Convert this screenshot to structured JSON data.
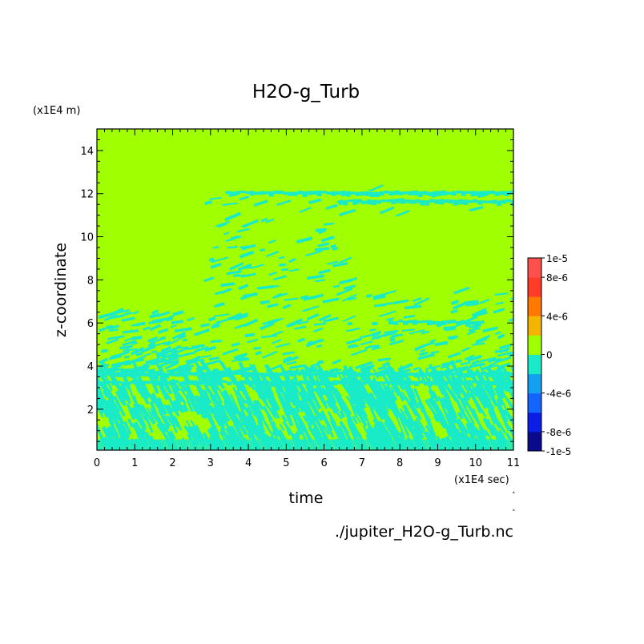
{
  "chart_data": {
    "type": "heatmap",
    "title": "H2O-g_Turb",
    "xlabel": "time",
    "x_unit": "(x1E4 sec)",
    "ylabel": "z-coordinate",
    "y_unit": "(x1E4 m)",
    "source_file": "./jupiter_H2O-g_Turb.nc",
    "xlim": [
      0,
      11
    ],
    "ylim": [
      0.1,
      15
    ],
    "x_ticks": [
      "0",
      "1",
      "2",
      "3",
      "4",
      "5",
      "6",
      "7",
      "8",
      "9",
      "10",
      "11"
    ],
    "y_ticks": [
      "2",
      "4",
      "6",
      "8",
      "10",
      "12",
      "14"
    ],
    "colorbar": {
      "range": [
        -1e-05,
        1e-05
      ],
      "tick_labels": [
        "1e-5",
        "8e-6",
        "4e-6",
        "0",
        "-4e-6",
        "-8e-6",
        "-1e-5"
      ],
      "tick_values": [
        1e-05,
        8e-06,
        4e-06,
        0,
        -4e-06,
        -8e-06,
        -1e-05
      ],
      "level_colors": [
        "#0a0a8c",
        "#0a1ee6",
        "#1464ff",
        "#14a0f0",
        "#19ebc8",
        "#a0ff00",
        "#f5b400",
        "#ff7800",
        "#ff3c28",
        "#ff5050"
      ]
    },
    "field_description": {
      "background_value": 0,
      "negative_band_value": -2e-06,
      "bands": [
        {
          "z": 12.0,
          "t_start": 3.4,
          "t_end": 11
        },
        {
          "z": 11.6,
          "t_start": 6.5,
          "t_end": 11
        },
        {
          "z": 6.0,
          "t_start": 7.7,
          "t_end": 10.0
        },
        {
          "z": 3.6,
          "t_start": 0,
          "t_end": 11
        },
        {
          "z": 3.2,
          "t_start": 0,
          "t_end": 11
        }
      ],
      "dense_turbulence_z_range": [
        0.1,
        3.7
      ],
      "sparse_turbulence_z_range": [
        3.7,
        12.2
      ]
    }
  }
}
